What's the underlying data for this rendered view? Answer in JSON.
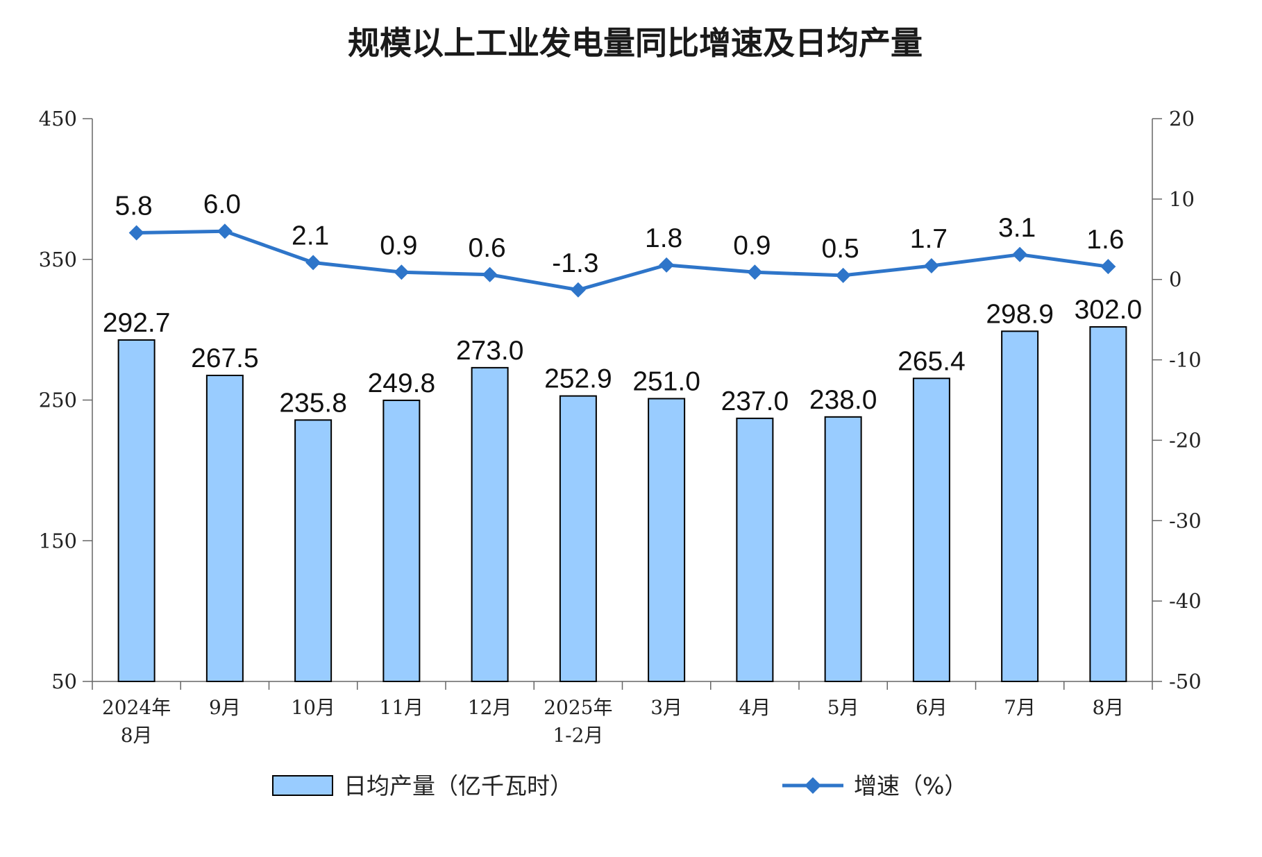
{
  "chart_data": {
    "type": "bar",
    "title": "规模以上工业发电量同比增速及日均产量",
    "categories": [
      [
        "2024年",
        "8月"
      ],
      [
        "9月"
      ],
      [
        "10月"
      ],
      [
        "11月"
      ],
      [
        "12月"
      ],
      [
        "2025年",
        "1-2月"
      ],
      [
        "3月"
      ],
      [
        "4月"
      ],
      [
        "5月"
      ],
      [
        "6月"
      ],
      [
        "7月"
      ],
      [
        "8月"
      ]
    ],
    "series": [
      {
        "name": "日均产量（亿千瓦时）",
        "type": "bar",
        "axis": "left",
        "values": [
          292.7,
          267.5,
          235.8,
          249.8,
          273.0,
          252.9,
          251.0,
          237.0,
          238.0,
          265.4,
          298.9,
          302.0
        ],
        "labels": [
          "292.7",
          "267.5",
          "235.8",
          "249.8",
          "273.0",
          "252.9",
          "251.0",
          "237.0",
          "238.0",
          "265.4",
          "298.9",
          "302.0"
        ],
        "color": "#99CCFF",
        "edge_color": "#000000"
      },
      {
        "name": "增速（%）",
        "type": "line",
        "axis": "right",
        "marker": "diamond",
        "values": [
          5.8,
          6.0,
          2.1,
          0.9,
          0.6,
          -1.3,
          1.8,
          0.9,
          0.5,
          1.7,
          3.1,
          1.6
        ],
        "labels": [
          "5.8",
          "6.0",
          "2.1",
          "0.9",
          "0.6",
          "-1.3",
          "1.8",
          "0.9",
          "0.5",
          "1.7",
          "3.1",
          "1.6"
        ],
        "color": "#2E75C9"
      }
    ],
    "left_axis": {
      "ylim": [
        50,
        450
      ],
      "ticks": [
        50,
        150,
        250,
        350,
        450
      ],
      "tick_labels": [
        "50",
        "150",
        "250",
        "350",
        "450"
      ]
    },
    "right_axis": {
      "ylim": [
        -50,
        20
      ],
      "ticks": [
        -50,
        -40,
        -30,
        -20,
        -10,
        0,
        10,
        20
      ],
      "tick_labels": [
        "-50",
        "-40",
        "-30",
        "-20",
        "-10",
        "0",
        "10",
        "20"
      ]
    },
    "grid": false,
    "legend_position": "bottom"
  }
}
